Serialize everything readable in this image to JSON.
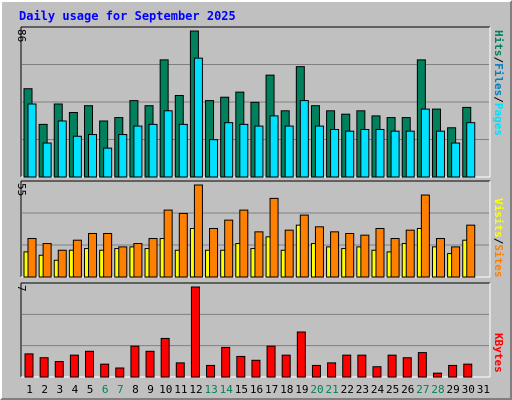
{
  "title": "Daily usage for September 2025",
  "colors": {
    "title": "#0000ff",
    "hits": "#00805c",
    "files": "#00c0ff",
    "pages": "#00e0ff",
    "visits": "#ffff00",
    "sites": "#ff8000",
    "kbytes": "#ff0000",
    "weekday_label": "#000000",
    "weekend_label": "#00805c"
  },
  "legends": {
    "top": [
      {
        "text": "Hits",
        "color": "#00805c"
      },
      {
        "text": "/",
        "color": "#000000"
      },
      {
        "text": "Files",
        "color": "#0080c0"
      },
      {
        "text": "/",
        "color": "#000000"
      },
      {
        "text": "Pages",
        "color": "#00e0ff"
      }
    ],
    "middle": [
      {
        "text": "Visits",
        "color": "#ffff00"
      },
      {
        "text": "/",
        "color": "#000000"
      },
      {
        "text": "Sites",
        "color": "#ff8000"
      }
    ],
    "bottom": [
      {
        "text": "KBytes",
        "color": "#ff0000"
      }
    ]
  },
  "chart_data": {
    "type": "bar",
    "title": "Daily usage for September 2025",
    "categories": [
      "1",
      "2",
      "3",
      "4",
      "5",
      "6",
      "7",
      "8",
      "9",
      "10",
      "11",
      "12",
      "13",
      "14",
      "15",
      "16",
      "17",
      "18",
      "19",
      "20",
      "21",
      "22",
      "23",
      "24",
      "25",
      "26",
      "27",
      "28",
      "29",
      "30",
      "31"
    ],
    "weekend_days": [
      6,
      7,
      13,
      14,
      20,
      21,
      27,
      28
    ],
    "panels": [
      {
        "name": "hits-files-pages",
        "max_label": "86",
        "ymax": 86,
        "series": [
          {
            "name": "Hits",
            "values": [
              52,
              31,
              43,
              38,
              42,
              33,
              35,
              45,
              42,
              69,
              48,
              86,
              45,
              47,
              50,
              44,
              60,
              39,
              65,
              42,
              39,
              37,
              39,
              36,
              35,
              35,
              69,
              40,
              29,
              41,
              null
            ]
          },
          {
            "name": "Pages",
            "values": [
              43,
              20,
              33,
              24,
              25,
              17,
              25,
              30,
              31,
              39,
              31,
              70,
              22,
              32,
              31,
              30,
              36,
              30,
              45,
              30,
              28,
              27,
              28,
              28,
              27,
              27,
              40,
              27,
              20,
              32,
              null
            ]
          }
        ]
      },
      {
        "name": "visits-sites",
        "max_label": "55",
        "ymax": 55,
        "series": [
          {
            "name": "Visits",
            "values": [
              15,
              13,
              10,
              16,
              17,
              16,
              17,
              18,
              17,
              23,
              16,
              29,
              16,
              16,
              20,
              17,
              24,
              16,
              31,
              20,
              18,
              17,
              18,
              16,
              15,
              20,
              29,
              18,
              14,
              22,
              null
            ]
          },
          {
            "name": "Sites",
            "values": [
              23,
              20,
              16,
              22,
              26,
              26,
              18,
              20,
              23,
              40,
              38,
              55,
              29,
              34,
              40,
              27,
              47,
              28,
              37,
              30,
              27,
              26,
              25,
              29,
              23,
              28,
              49,
              23,
              18,
              31,
              null
            ]
          }
        ]
      },
      {
        "name": "kbytes",
        "max_label": "7",
        "ymax": 7,
        "series": [
          {
            "name": "KBytes",
            "values": [
              1.8,
              1.5,
              1.2,
              1.7,
              2.0,
              1.0,
              0.7,
              2.4,
              2.0,
              3.0,
              1.1,
              7.0,
              0.9,
              2.3,
              1.6,
              1.3,
              2.4,
              1.7,
              3.5,
              0.9,
              1.1,
              1.7,
              1.7,
              0.8,
              1.7,
              1.5,
              1.9,
              0.3,
              0.9,
              1.0,
              null
            ]
          }
        ]
      }
    ]
  }
}
